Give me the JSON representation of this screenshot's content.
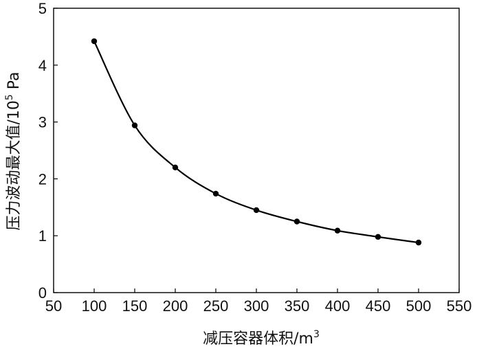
{
  "chart_data": {
    "type": "line",
    "title": "",
    "xlabel": "减压容器体积/m",
    "xlabel_sup": "3",
    "ylabel": "压力波动最大值/10",
    "ylabel_sup": "5",
    "ylabel_unit": " Pa",
    "xlim": [
      50,
      550
    ],
    "ylim": [
      0,
      5
    ],
    "xticks": [
      50,
      100,
      150,
      200,
      250,
      300,
      350,
      400,
      450,
      500,
      550
    ],
    "yticks": [
      0,
      1,
      2,
      3,
      4,
      5
    ],
    "grid": false,
    "smooth": true,
    "series": [
      {
        "x": [
          100,
          150,
          200,
          250,
          300,
          350,
          400,
          450,
          500
        ],
        "y": [
          4.42,
          2.94,
          2.2,
          1.74,
          1.45,
          1.25,
          1.09,
          0.98,
          0.88
        ]
      }
    ],
    "colors": {
      "line": "#000000",
      "marker": "#000000",
      "axis": "#000000"
    }
  }
}
